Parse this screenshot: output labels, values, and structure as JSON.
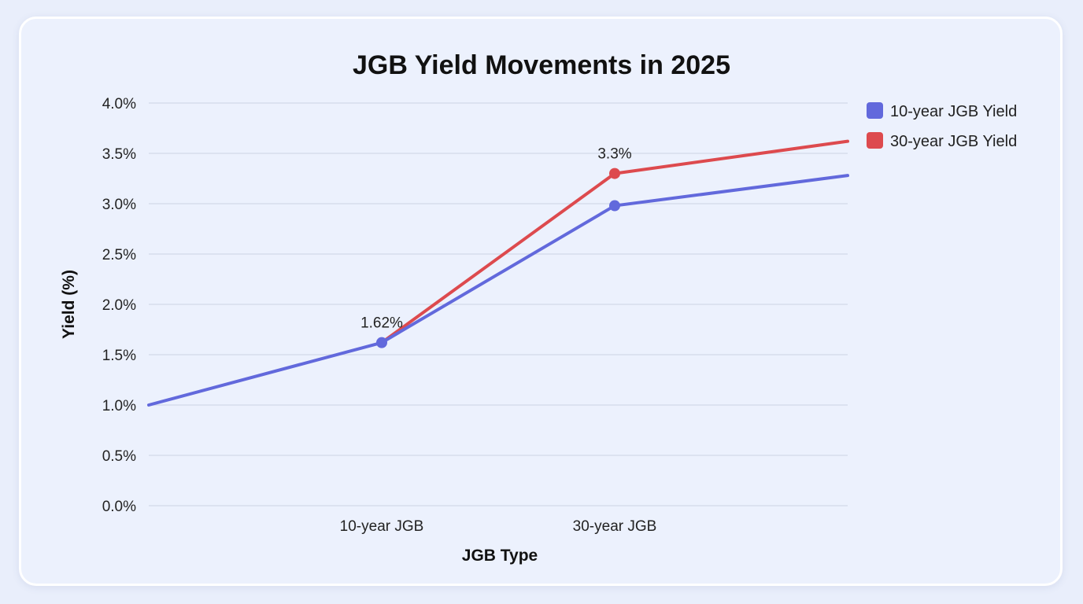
{
  "chart_data": {
    "type": "line",
    "title": "JGB Yield Movements in 2025",
    "xlabel": "JGB Type",
    "ylabel": "Yield (%)",
    "x": [
      0,
      1,
      2,
      3
    ],
    "tick_labels": {
      "1": "10-year JGB",
      "2": "30-year JGB"
    },
    "ylim": [
      0,
      4
    ],
    "yticks": [
      {
        "value": 0.0,
        "label": "0.0%"
      },
      {
        "value": 0.5,
        "label": "0.5%"
      },
      {
        "value": 1.0,
        "label": "1.0%"
      },
      {
        "value": 1.5,
        "label": "1.5%"
      },
      {
        "value": 2.0,
        "label": "2.0%"
      },
      {
        "value": 2.5,
        "label": "2.5%"
      },
      {
        "value": 3.0,
        "label": "3.0%"
      },
      {
        "value": 3.5,
        "label": "3.5%"
      },
      {
        "value": 4.0,
        "label": "4.0%"
      }
    ],
    "grid": true,
    "legend_position": "top-right",
    "series": [
      {
        "name": "10-year JGB Yield",
        "color": "#6269dc",
        "values": [
          1.0,
          1.62,
          2.98,
          3.28
        ],
        "markers": [
          1,
          2
        ],
        "data_labels": [
          {
            "index": 1,
            "text": "1.62%"
          }
        ]
      },
      {
        "name": "30-year JGB Yield",
        "color": "#dd4a4e",
        "values": [
          null,
          1.62,
          3.3,
          3.62
        ],
        "markers": [
          2
        ],
        "data_labels": [
          {
            "index": 2,
            "text": "3.3%"
          }
        ]
      }
    ]
  }
}
